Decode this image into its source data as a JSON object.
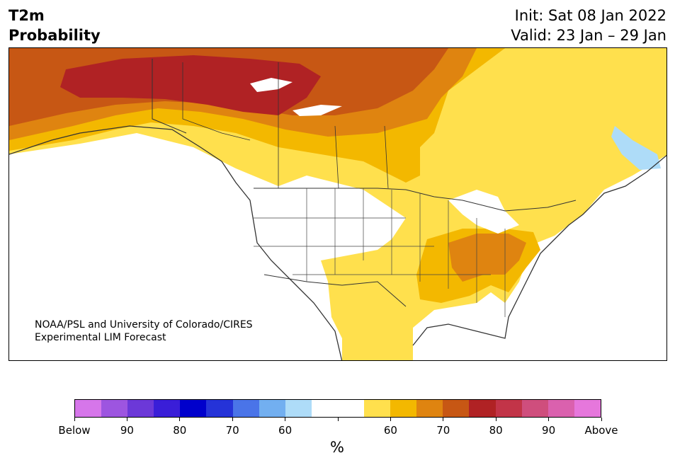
{
  "header": {
    "variable": "T2m",
    "product": "Probability",
    "init": "Init: Sat 08 Jan 2022",
    "valid": "Valid: 23 Jan – 29 Jan"
  },
  "map": {
    "region": "North America",
    "credit_line1": "NOAA/PSL and University of Colorado/CIRES",
    "credit_line2": "Experimental LIM Forecast"
  },
  "colorbar": {
    "colors": [
      "#d676ea",
      "#9d55e0",
      "#6c38d8",
      "#3a1ed8",
      "#0000cc",
      "#2533d8",
      "#4a74e8",
      "#72aff0",
      "#aedcf8",
      "#ffffff",
      "#ffffff",
      "#ffe04d",
      "#f3b800",
      "#df8410",
      "#c75714",
      "#b02224",
      "#c23448",
      "#cf4e7d",
      "#da61ae",
      "#e677dc"
    ],
    "tick_labels": [
      "Below",
      "90",
      "80",
      "70",
      "60",
      "",
      "60",
      "70",
      "80",
      "90",
      "Above"
    ],
    "unit": "%"
  }
}
